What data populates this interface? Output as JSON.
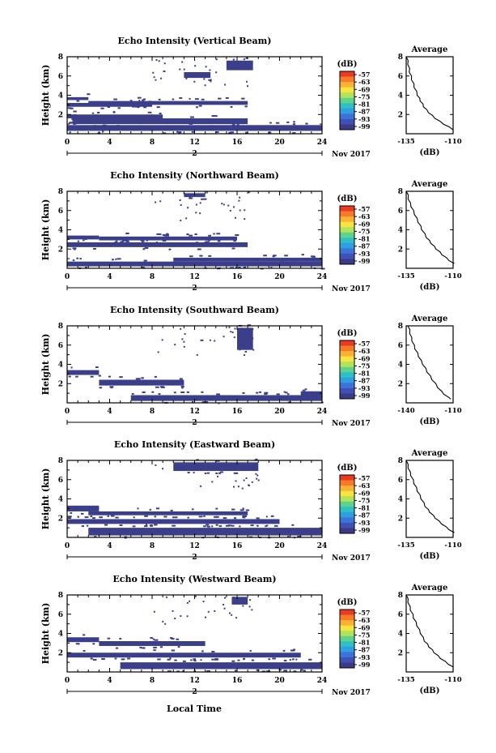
{
  "figure": {
    "xlabel": "Local Time",
    "date_label": "Nov 2017",
    "day_label": "2",
    "ylabel": "Height (km)",
    "colorbar_unit": "(dB)",
    "colorbar_ticks": [
      "-57",
      "-63",
      "-69",
      "-75",
      "-81",
      "-87",
      "-93",
      "-99"
    ],
    "colorbar_colors": [
      "#e93a22",
      "#f67a29",
      "#fbb234",
      "#f7e443",
      "#b3e35a",
      "#5fd28d",
      "#2fbfc5",
      "#2f9fe0",
      "#3d73d8",
      "#4050b4",
      "#3b3a86"
    ],
    "echo_color": "#3b3f8a",
    "average_title": "Average",
    "average_xlabel": "(dB)"
  },
  "chart_data": [
    {
      "type": "heatmap",
      "title": "Echo Intensity (Vertical Beam)",
      "xlim": [
        0,
        24
      ],
      "ylim": [
        0,
        8
      ],
      "x_ticks": [
        0,
        4,
        8,
        12,
        16,
        20,
        24
      ],
      "y_ticks": [
        2,
        4,
        6,
        8
      ],
      "bands": [
        {
          "x": [
            0,
            24
          ],
          "y": [
            0.3,
            0.9
          ]
        },
        {
          "x": [
            0.5,
            17
          ],
          "y": [
            1.0,
            1.6
          ]
        },
        {
          "x": [
            0,
            9
          ],
          "y": [
            1.6,
            2.0
          ]
        },
        {
          "x": [
            0,
            8
          ],
          "y": [
            2.8,
            3.2
          ]
        },
        {
          "x": [
            2,
            17
          ],
          "y": [
            3.0,
            3.4
          ]
        },
        {
          "x": [
            0,
            2
          ],
          "y": [
            3.5,
            3.8
          ]
        },
        {
          "x": [
            15,
            17.5
          ],
          "y": [
            6.6,
            7.6
          ]
        },
        {
          "x": [
            11,
            13.5
          ],
          "y": [
            5.8,
            6.4
          ]
        }
      ],
      "average": {
        "xlim": [
          -135,
          -110
        ],
        "x_ticks": [
          -135,
          -110
        ],
        "y_ticks": [
          2,
          4,
          6,
          8
        ],
        "x": [
          -135,
          -134.6,
          -134.2,
          -133.8,
          -133.4,
          -132.8,
          -132.2,
          -131.5,
          -130.8,
          -130,
          -129.2,
          -128.4,
          -127.6,
          -126.7,
          -125.8,
          -124.6,
          -123.2,
          -121.6,
          -119.8,
          -117.6,
          -115.2,
          -112.6,
          -110
        ],
        "y": [
          8,
          7.6,
          7.2,
          6.8,
          6.4,
          6,
          5.6,
          5.2,
          4.8,
          4.4,
          4,
          3.7,
          3.4,
          3.1,
          2.8,
          2.5,
          2.2,
          1.9,
          1.6,
          1.3,
          1.0,
          0.7,
          0.4
        ]
      }
    },
    {
      "type": "heatmap",
      "title": "Echo Intensity (Northward Beam)",
      "xlim": [
        0,
        24
      ],
      "ylim": [
        0,
        8
      ],
      "x_ticks": [
        0,
        4,
        8,
        12,
        16,
        20,
        24
      ],
      "y_ticks": [
        2,
        4,
        6,
        8
      ],
      "bands": [
        {
          "x": [
            0,
            24
          ],
          "y": [
            0.2,
            0.7
          ]
        },
        {
          "x": [
            10,
            24
          ],
          "y": [
            0.7,
            1.1
          ]
        },
        {
          "x": [
            0,
            17
          ],
          "y": [
            2.2,
            2.7
          ]
        },
        {
          "x": [
            3,
            16
          ],
          "y": [
            2.9,
            3.3
          ]
        },
        {
          "x": [
            0,
            3
          ],
          "y": [
            3.0,
            3.4
          ]
        },
        {
          "x": [
            11,
            13
          ],
          "y": [
            7.4,
            7.8
          ]
        }
      ],
      "average": {
        "xlim": [
          -135,
          -110
        ],
        "x_ticks": [
          -135,
          -110
        ],
        "y_ticks": [
          2,
          4,
          6,
          8
        ],
        "x": [
          -135,
          -134.5,
          -134,
          -133.3,
          -132.5,
          -131.6,
          -130.7,
          -129.8,
          -128.8,
          -127.8,
          -126.8,
          -125.6,
          -124.4,
          -123.2,
          -122,
          -120.6,
          -119.2,
          -117.6,
          -116,
          -114.2,
          -112.2,
          -110
        ],
        "y": [
          8,
          7.6,
          7.2,
          6.8,
          6.4,
          6,
          5.6,
          5.2,
          4.8,
          4.4,
          4,
          3.6,
          3.2,
          2.9,
          2.6,
          2.3,
          2.0,
          1.7,
          1.4,
          1.1,
          0.8,
          0.5
        ]
      }
    },
    {
      "type": "heatmap",
      "title": "Echo Intensity (Southward Beam)",
      "xlim": [
        0,
        24
      ],
      "ylim": [
        0,
        8
      ],
      "x_ticks": [
        0,
        4,
        8,
        12,
        16,
        20,
        24
      ],
      "y_ticks": [
        2,
        4,
        6,
        8
      ],
      "bands": [
        {
          "x": [
            6,
            24
          ],
          "y": [
            0.2,
            0.8
          ]
        },
        {
          "x": [
            3,
            11
          ],
          "y": [
            1.8,
            2.4
          ]
        },
        {
          "x": [
            0,
            3
          ],
          "y": [
            2.9,
            3.4
          ]
        },
        {
          "x": [
            16,
            17.5
          ],
          "y": [
            5.5,
            7.8
          ]
        },
        {
          "x": [
            22,
            24
          ],
          "y": [
            0.8,
            1.2
          ]
        }
      ],
      "average": {
        "xlim": [
          -140,
          -110
        ],
        "x_ticks": [
          -140,
          -110
        ],
        "y_ticks": [
          2,
          4,
          6,
          8
        ],
        "x": [
          -139,
          -138.4,
          -137.8,
          -137.2,
          -136.4,
          -135.5,
          -134.5,
          -133.4,
          -132.2,
          -131,
          -129.6,
          -128.2,
          -126.8,
          -125.2,
          -123.6,
          -121.8,
          -120,
          -118,
          -116,
          -113.8,
          -111.5
        ],
        "y": [
          8,
          7.6,
          7.2,
          6.8,
          6.4,
          6,
          5.6,
          5.2,
          4.8,
          4.4,
          4,
          3.6,
          3.2,
          2.8,
          2.4,
          2.0,
          1.6,
          1.2,
          0.9,
          0.6,
          0.4
        ]
      }
    },
    {
      "type": "heatmap",
      "title": "Echo Intensity (Eastward Beam)",
      "xlim": [
        0,
        24
      ],
      "ylim": [
        0,
        8
      ],
      "x_ticks": [
        0,
        4,
        8,
        12,
        16,
        20,
        24
      ],
      "y_ticks": [
        2,
        4,
        6,
        8
      ],
      "bands": [
        {
          "x": [
            2,
            24
          ],
          "y": [
            0.2,
            1.0
          ]
        },
        {
          "x": [
            0,
            20
          ],
          "y": [
            1.4,
            1.9
          ]
        },
        {
          "x": [
            2,
            17
          ],
          "y": [
            2.3,
            2.7
          ]
        },
        {
          "x": [
            0,
            3
          ],
          "y": [
            2.7,
            3.3
          ]
        },
        {
          "x": [
            10,
            18
          ],
          "y": [
            6.9,
            7.8
          ]
        }
      ],
      "average": {
        "xlim": [
          -135,
          -110
        ],
        "x_ticks": [
          -135,
          -110
        ],
        "y_ticks": [
          2,
          4,
          6,
          8
        ],
        "x": [
          -135,
          -134.6,
          -134,
          -133.4,
          -132.6,
          -131.8,
          -131,
          -130.1,
          -129.2,
          -128.2,
          -127.2,
          -126.1,
          -125,
          -123.8,
          -122.5,
          -121.1,
          -119.6,
          -118,
          -116.2,
          -114.3,
          -112.2,
          -110
        ],
        "y": [
          8,
          7.6,
          7.2,
          6.8,
          6.4,
          6,
          5.6,
          5.2,
          4.8,
          4.4,
          4,
          3.6,
          3.2,
          2.9,
          2.6,
          2.3,
          2.0,
          1.7,
          1.4,
          1.1,
          0.8,
          0.5
        ]
      }
    },
    {
      "type": "heatmap",
      "title": "Echo Intensity (Westward Beam)",
      "xlim": [
        0,
        24
      ],
      "ylim": [
        0,
        8
      ],
      "x_ticks": [
        0,
        4,
        8,
        12,
        16,
        20,
        24
      ],
      "y_ticks": [
        2,
        4,
        6,
        8
      ],
      "bands": [
        {
          "x": [
            5,
            24
          ],
          "y": [
            0.3,
            1.0
          ]
        },
        {
          "x": [
            0,
            22
          ],
          "y": [
            1.5,
            2.0
          ]
        },
        {
          "x": [
            3,
            13
          ],
          "y": [
            2.7,
            3.2
          ]
        },
        {
          "x": [
            0,
            3
          ],
          "y": [
            3.1,
            3.6
          ]
        },
        {
          "x": [
            15.5,
            17
          ],
          "y": [
            7.0,
            7.8
          ]
        }
      ],
      "average": {
        "xlim": [
          -135,
          -110
        ],
        "x_ticks": [
          -135,
          -110
        ],
        "y_ticks": [
          2,
          4,
          6,
          8
        ],
        "x": [
          -135,
          -134.6,
          -134.1,
          -133.5,
          -132.8,
          -132,
          -131.2,
          -130.3,
          -129.4,
          -128.5,
          -127.5,
          -126.5,
          -125.4,
          -124.2,
          -123,
          -121.6,
          -120.2,
          -118.6,
          -116.8,
          -114.8,
          -112.6,
          -110.4
        ],
        "y": [
          8,
          7.6,
          7.2,
          6.8,
          6.4,
          6,
          5.6,
          5.2,
          4.8,
          4.4,
          4,
          3.6,
          3.2,
          2.9,
          2.6,
          2.3,
          2.0,
          1.7,
          1.4,
          1.1,
          0.8,
          0.5
        ]
      }
    }
  ]
}
